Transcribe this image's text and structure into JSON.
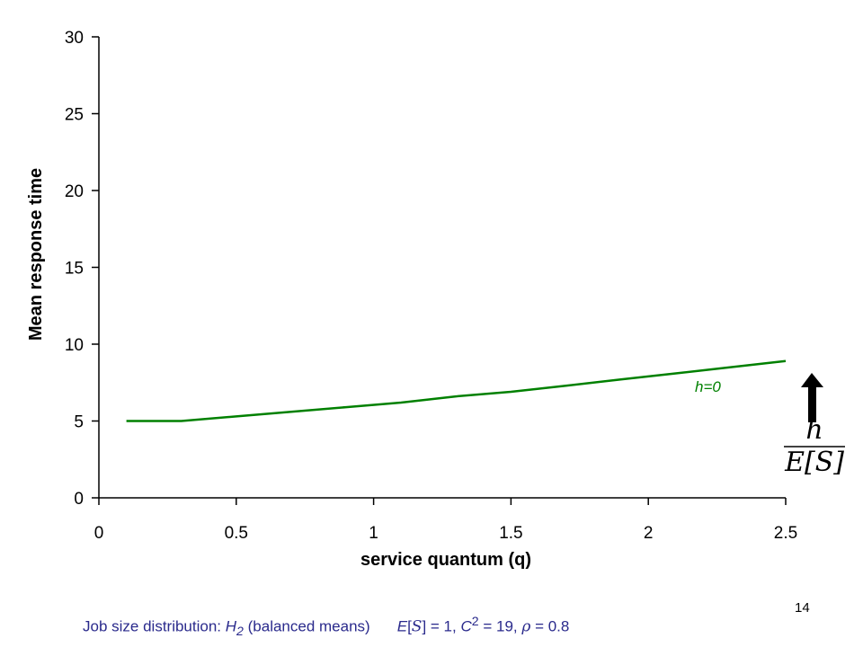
{
  "chart_data": {
    "type": "line",
    "xlabel": "service quantum (q)",
    "ylabel": "Mean response time",
    "xlim": [
      0,
      2.5
    ],
    "ylim": [
      0,
      30
    ],
    "x_ticks": [
      "0",
      "0.5",
      "1",
      "1.5",
      "2",
      "2.5"
    ],
    "y_ticks": [
      "0",
      "5",
      "10",
      "15",
      "20",
      "25",
      "30"
    ],
    "grid": false,
    "series": [
      {
        "name": "h=0",
        "color": "#008000",
        "x": [
          0.1,
          0.3,
          0.5,
          0.7,
          0.9,
          1.1,
          1.3,
          1.5,
          1.7,
          1.9,
          2.1,
          2.3,
          2.5
        ],
        "y": [
          5.0,
          5.0,
          5.3,
          5.6,
          5.9,
          6.2,
          6.6,
          6.9,
          7.3,
          7.7,
          8.1,
          8.5,
          8.9
        ]
      }
    ],
    "annotations": [
      {
        "text": "h=0",
        "color": "#008000"
      }
    ]
  },
  "fraction": {
    "numerator": "h",
    "denominator": "E[S]",
    "arrow": "up-arrow-icon"
  },
  "caption": {
    "lead": "Job size distribution: ",
    "h": "H",
    "h_sub": "2",
    "balanced": " (balanced means)",
    "e": "E",
    "s_open": "[",
    "s": "S",
    "s_close": "] = 1, ",
    "c": "C",
    "c_sup": "2",
    "c_tail": " = 19, ",
    "rho": "ρ",
    "rho_tail": " = 0.8"
  },
  "page_number": "14"
}
